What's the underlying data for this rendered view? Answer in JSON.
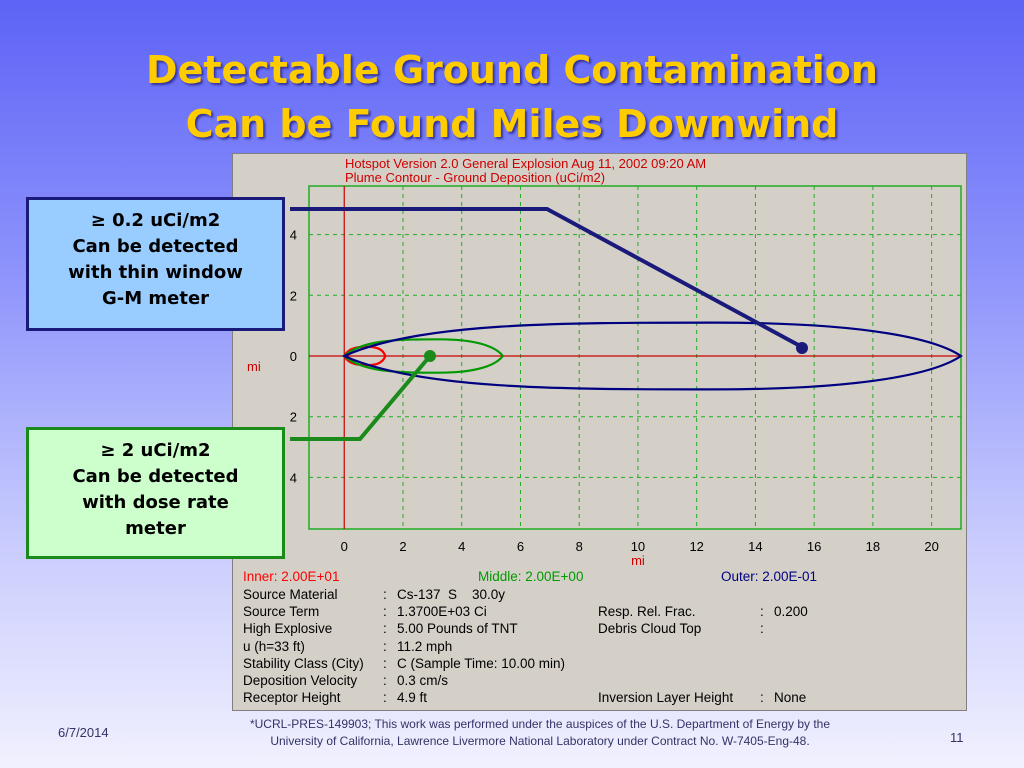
{
  "slide": {
    "title_line1": "Detectable Ground Contamination",
    "title_line2": "Can be Found Miles Downwind",
    "date": "6/7/2014",
    "page_number": "11",
    "footnote_line1": "*UCRL-PRES-149903; This work was performed under the auspices of the U.S. Department of Energy by the",
    "footnote_line2": "University of California, Lawrence Livermore National Laboratory under Contract No. W-7405-Eng-48."
  },
  "callouts": {
    "outer": {
      "line1": "≥ 0.2 uCi/m2",
      "line2": "Can be detected",
      "line3": "with thin window",
      "line4": "G-M meter"
    },
    "middle": {
      "line1": "≥ 2 uCi/m2",
      "line2": "Can be detected",
      "line3": "with dose rate",
      "line4": "meter"
    }
  },
  "chart_data": {
    "type": "contour",
    "header_line1": "Hotspot  Version 2.0 General Explosion  Aug 11, 2002 09:20 AM",
    "header_line2": "Plume Contour  - Ground Deposition (uCi/m2)",
    "xlabel": "mi",
    "ylabel": "mi",
    "xlim": [
      -1.2,
      21
    ],
    "ylim": [
      -5.7,
      5.6
    ],
    "x_ticks": [
      0,
      2,
      4,
      6,
      8,
      10,
      12,
      14,
      16,
      18,
      20
    ],
    "y_ticks": [
      4,
      2,
      0,
      -2,
      -4
    ],
    "y_tick_labels": [
      "4",
      "2",
      "0",
      "2",
      "4"
    ],
    "grid": true,
    "contours": [
      {
        "name": "Inner",
        "value": "2.00E+01",
        "color": "#ff0000",
        "x_extent": [
          0,
          1.4
        ],
        "half_width": 0.3
      },
      {
        "name": "Middle",
        "value": "2.00E+00",
        "color": "#009900",
        "x_extent": [
          0,
          5.4
        ],
        "half_width": 0.55
      },
      {
        "name": "Outer",
        "value": "2.00E-01",
        "color": "#000080",
        "x_extent": [
          0,
          21
        ],
        "half_width": 1.1
      }
    ],
    "legend": {
      "inner": "Inner: 2.00E+01",
      "middle": "Middle: 2.00E+00",
      "outer": "Outer: 2.00E-01"
    },
    "callout_points": {
      "outer": [
        15.8,
        0.3
      ],
      "middle": [
        3.1,
        0
      ]
    }
  },
  "info": {
    "rows": [
      {
        "label": "Source Material",
        "value": "Cs-137  S    30.0y",
        "label2": "",
        "value2": ""
      },
      {
        "label": "Source Term",
        "value": "1.3700E+03 Ci",
        "label2": "Resp. Rel. Frac.",
        "value2": "0.200"
      },
      {
        "label": "High Explosive",
        "value": "5.00 Pounds of TNT",
        "label2": "Debris Cloud Top",
        "value2": ""
      },
      {
        "label": "u (h=33 ft)",
        "value": "11.2 mph",
        "label2": "",
        "value2": ""
      },
      {
        "label": "Stability Class (City)",
        "value": "C (Sample Time: 10.00 min)",
        "label2": "",
        "value2": ""
      },
      {
        "label": "Deposition Velocity",
        "value": "0.3 cm/s",
        "label2": "",
        "value2": ""
      },
      {
        "label": "Receptor Height",
        "value": "4.9 ft",
        "label2": "Inversion Layer Height",
        "value2": "None"
      }
    ]
  },
  "colors": {
    "title": "#ffcc00",
    "panel": "#d4d0c8",
    "grid": "#22aa22",
    "axis_line": "#cc0000",
    "header_text": "#cc0000",
    "inner": "#ff0000",
    "middle": "#009900",
    "outer": "#000080",
    "callout_outer_bg": "#99ccff",
    "callout_middle_bg": "#ccffcc"
  }
}
